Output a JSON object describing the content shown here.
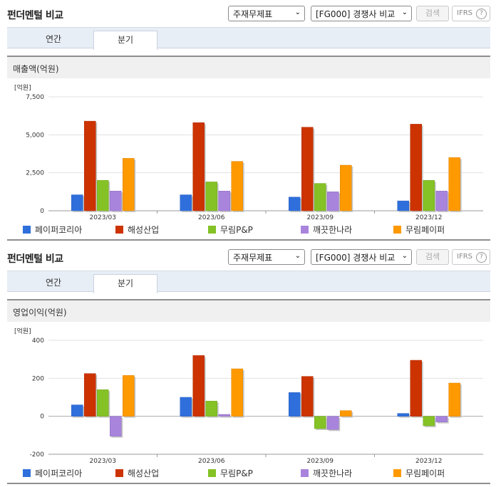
{
  "panels": [
    {
      "title": "펀더멘털 비교",
      "select1": "주재무제표",
      "select2": "[FG000] 경쟁사 비교",
      "search_label": "검색",
      "ifrs_label": "IFRS",
      "help_glyph": "?",
      "tabs": [
        {
          "label": "연간"
        },
        {
          "label": "분기"
        }
      ],
      "active_tab": 1,
      "subheading": "매출액(억원)"
    },
    {
      "title": "펀더멘털 비교",
      "select1": "주재무제표",
      "select2": "[FG000] 경쟁사 비교",
      "search_label": "검색",
      "ifrs_label": "IFRS",
      "help_glyph": "?",
      "tabs": [
        {
          "label": "연간"
        },
        {
          "label": "분기"
        }
      ],
      "active_tab": 1,
      "subheading": "영업이익(억원)"
    }
  ],
  "chart_data": [
    {
      "type": "bar",
      "title": "매출액(억원)",
      "unit_label": "[억원]",
      "categories": [
        "2023/03",
        "2023/06",
        "2023/09",
        "2023/12"
      ],
      "ylim": [
        0,
        7500
      ],
      "yticks": [
        0,
        2500,
        5000,
        7500
      ],
      "ytick_labels": [
        "0",
        "2,500",
        "5,000",
        "7,500"
      ],
      "grid": true,
      "legend_position": "bottom",
      "series": [
        {
          "name": "페이퍼코리아",
          "color": "#2f6fdc",
          "values": [
            1050,
            1050,
            900,
            650
          ]
        },
        {
          "name": "해성산업",
          "color": "#cc3300",
          "values": [
            5900,
            5800,
            5500,
            5700
          ]
        },
        {
          "name": "무림P&P",
          "color": "#84c225",
          "values": [
            2000,
            1900,
            1800,
            2000
          ]
        },
        {
          "name": "깨끗한나라",
          "color": "#a884dc",
          "values": [
            1300,
            1300,
            1250,
            1300
          ]
        },
        {
          "name": "무림페이퍼",
          "color": "#ff9900",
          "values": [
            3450,
            3250,
            3000,
            3500
          ]
        }
      ]
    },
    {
      "type": "bar",
      "title": "영업이익(억원)",
      "unit_label": "[억원]",
      "categories": [
        "2023/03",
        "2023/06",
        "2023/09",
        "2023/12"
      ],
      "ylim": [
        -200,
        400
      ],
      "yticks": [
        -200,
        0,
        200,
        400
      ],
      "ytick_labels": [
        "-200",
        "0",
        "200",
        "400"
      ],
      "grid": true,
      "legend_position": "bottom",
      "series": [
        {
          "name": "페이퍼코리아",
          "color": "#2f6fdc",
          "values": [
            60,
            100,
            125,
            15
          ]
        },
        {
          "name": "해성산업",
          "color": "#cc3300",
          "values": [
            225,
            320,
            210,
            295
          ]
        },
        {
          "name": "무림P&P",
          "color": "#84c225",
          "values": [
            140,
            80,
            -65,
            -50
          ]
        },
        {
          "name": "깨끗한나라",
          "color": "#a884dc",
          "values": [
            -105,
            10,
            -70,
            -30
          ]
        },
        {
          "name": "무림페이퍼",
          "color": "#ff9900",
          "values": [
            215,
            250,
            30,
            175
          ]
        }
      ]
    }
  ]
}
